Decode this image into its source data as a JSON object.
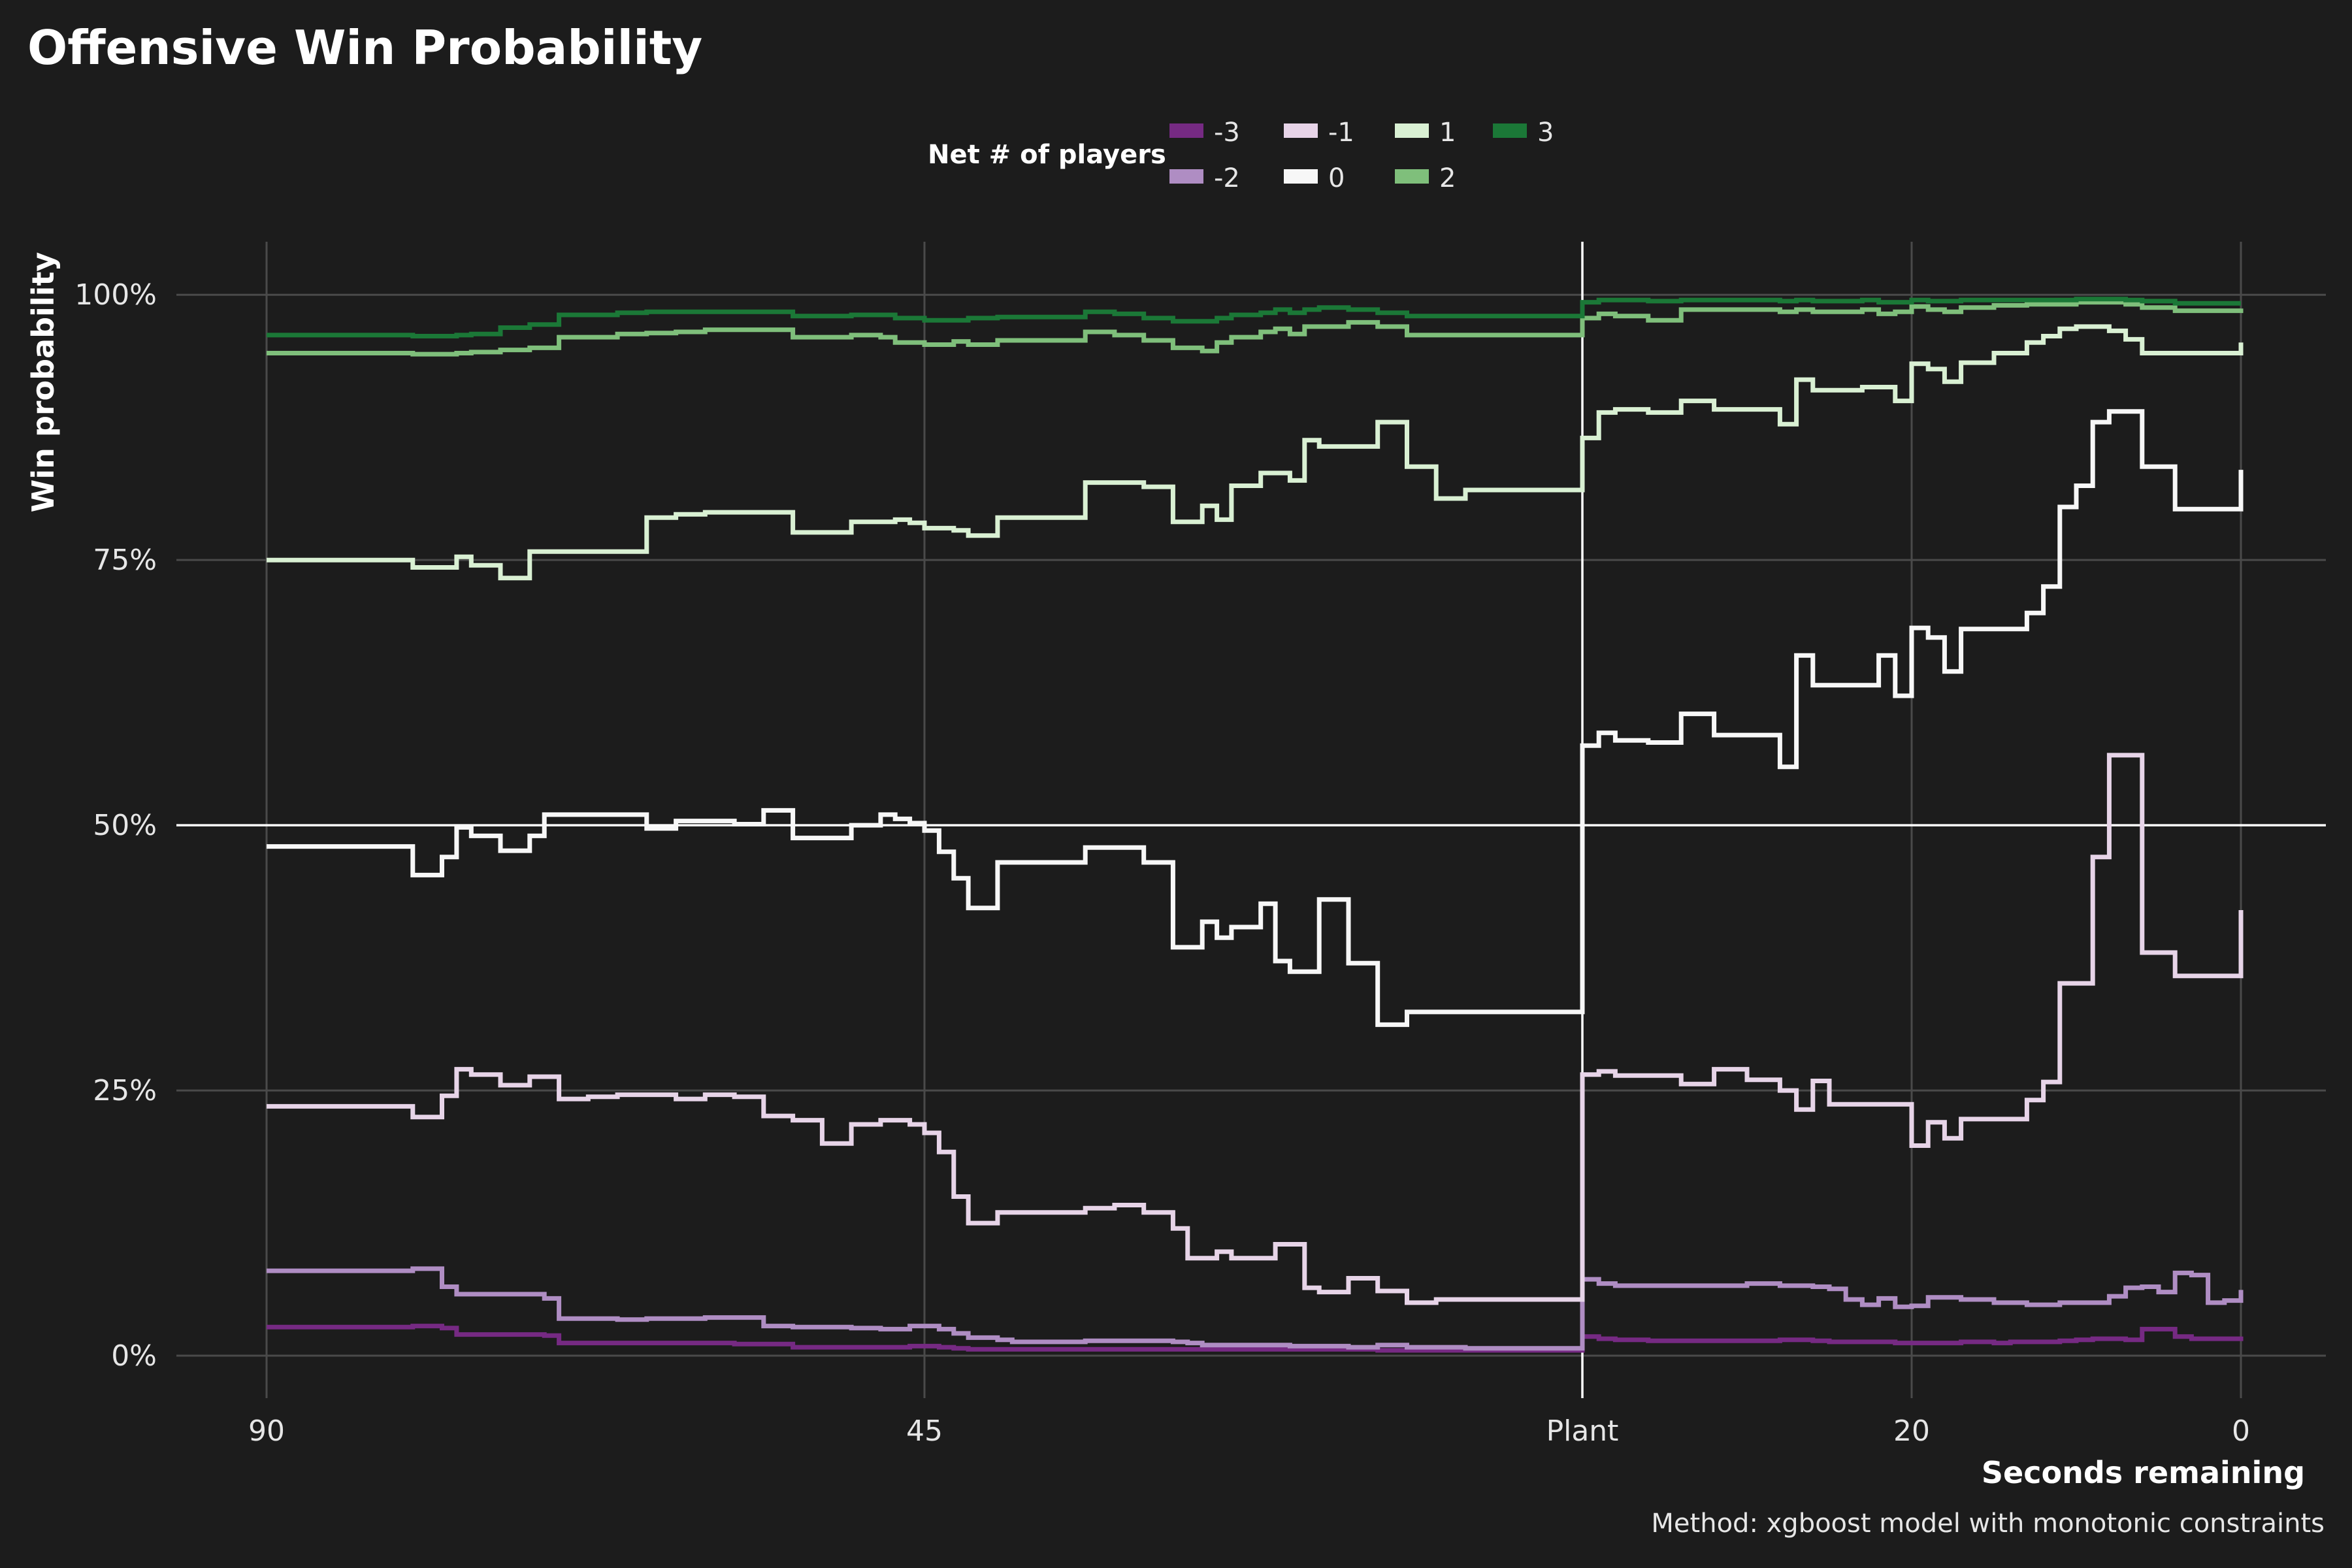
{
  "chart_data": {
    "type": "line",
    "step": true,
    "title": "Offensive Win Probability",
    "xlabel": "Seconds remaining",
    "ylabel": "Win probability",
    "caption": "Method: xgboost model with monotonic constraints",
    "legend": {
      "title": "Net # of players",
      "placement": "top-center"
    },
    "x_axis": {
      "description": "Time axis: 90s to 45s before plant, then plant, then 40s post-plant countdown to 0",
      "tick_labels": [
        "90",
        "45",
        "Plant",
        "20",
        "0"
      ]
    },
    "y_axis": {
      "ylim": [
        -4,
        105
      ],
      "ticks": [
        0,
        25,
        50,
        75,
        100
      ],
      "tick_labels": [
        "0%",
        "25%",
        "50%",
        "75%",
        "100%"
      ]
    },
    "reference_lines": {
      "horizontal": 50,
      "vertical": "Plant"
    },
    "pre_plant_x": [
      90,
      88,
      86,
      84,
      82,
      80,
      78,
      77,
      76,
      75,
      74,
      73,
      72,
      71,
      70,
      68,
      66,
      64,
      62,
      60,
      58,
      56,
      54,
      52,
      50,
      48,
      47,
      46,
      45,
      44,
      43,
      42,
      41,
      40,
      39,
      38,
      36,
      34,
      32,
      30,
      28,
      27,
      26,
      25,
      24,
      23,
      22,
      21,
      20,
      19,
      18,
      16,
      14,
      12,
      10,
      8,
      6,
      4,
      2,
      0
    ],
    "post_plant_x": [
      40,
      39,
      38,
      36,
      34,
      32,
      30,
      28,
      27,
      26,
      25,
      24,
      23,
      22,
      21,
      20,
      19,
      18,
      17,
      16,
      15,
      14,
      13,
      12,
      11,
      10,
      9,
      8,
      7,
      6,
      5,
      4,
      3,
      2,
      1,
      0
    ],
    "series": [
      {
        "name": "-3",
        "color": "#762a83",
        "pre": [
          2.7,
          2.7,
          2.7,
          2.7,
          2.7,
          2.8,
          2.6,
          2.0,
          2.0,
          2.0,
          2.0,
          2.0,
          2.0,
          1.9,
          1.2,
          1.2,
          1.2,
          1.2,
          1.2,
          1.2,
          1.1,
          1.1,
          0.8,
          0.8,
          0.8,
          0.8,
          0.8,
          0.9,
          0.9,
          0.8,
          0.7,
          0.6,
          0.6,
          0.6,
          0.6,
          0.6,
          0.6,
          0.6,
          0.6,
          0.6,
          0.6,
          0.6,
          0.6,
          0.6,
          0.6,
          0.6,
          0.6,
          0.6,
          0.6,
          0.6,
          0.6,
          0.6,
          0.5,
          0.5,
          0.5,
          0.5,
          0.5,
          0.5,
          0.5,
          0.5
        ],
        "post": [
          1.8,
          1.6,
          1.5,
          1.4,
          1.4,
          1.4,
          1.4,
          1.5,
          1.5,
          1.4,
          1.3,
          1.3,
          1.3,
          1.3,
          1.2,
          1.2,
          1.2,
          1.2,
          1.3,
          1.3,
          1.2,
          1.3,
          1.3,
          1.3,
          1.4,
          1.5,
          1.6,
          1.6,
          1.5,
          2.5,
          2.5,
          1.8,
          1.6,
          1.6,
          1.6,
          1.8
        ]
      },
      {
        "name": "-2",
        "color": "#af8dc3",
        "pre": [
          8.0,
          8.0,
          8.0,
          8.0,
          8.0,
          8.2,
          6.5,
          5.8,
          5.8,
          5.8,
          5.8,
          5.8,
          5.8,
          5.4,
          3.5,
          3.5,
          3.4,
          3.5,
          3.5,
          3.6,
          3.6,
          2.8,
          2.7,
          2.7,
          2.6,
          2.5,
          2.5,
          2.8,
          2.8,
          2.5,
          2.1,
          1.7,
          1.7,
          1.5,
          1.3,
          1.3,
          1.3,
          1.4,
          1.4,
          1.4,
          1.3,
          1.2,
          1.0,
          1.0,
          1.0,
          1.0,
          1.0,
          1.0,
          0.9,
          0.9,
          0.9,
          0.8,
          1.0,
          0.8,
          0.8,
          0.7,
          0.7,
          0.7,
          0.7,
          0.7
        ],
        "post": [
          7.2,
          6.8,
          6.6,
          6.6,
          6.6,
          6.6,
          6.8,
          6.6,
          6.6,
          6.5,
          6.3,
          5.3,
          4.8,
          5.4,
          4.6,
          4.7,
          5.5,
          5.5,
          5.3,
          5.3,
          5.0,
          5.0,
          4.8,
          4.8,
          5.0,
          5.0,
          5.0,
          5.6,
          6.4,
          6.5,
          6.0,
          7.8,
          7.6,
          5.0,
          5.2,
          6.2
        ]
      },
      {
        "name": "-1",
        "color": "#e7d4e8",
        "pre": [
          23.5,
          23.5,
          23.5,
          23.5,
          23.5,
          22.5,
          24.5,
          27.0,
          26.5,
          26.5,
          25.5,
          25.5,
          26.3,
          26.3,
          24.2,
          24.4,
          24.6,
          24.6,
          24.2,
          24.6,
          24.4,
          22.6,
          22.2,
          20.0,
          21.8,
          22.2,
          22.2,
          21.8,
          21.0,
          19.2,
          15.0,
          12.5,
          12.5,
          13.5,
          13.5,
          13.5,
          13.5,
          13.9,
          14.2,
          13.5,
          12.0,
          9.2,
          9.2,
          9.8,
          9.2,
          9.2,
          9.2,
          10.5,
          10.5,
          6.4,
          6.0,
          7.3,
          6.1,
          5.0,
          5.3,
          5.3,
          5.3,
          5.3,
          5.3,
          5.3
        ],
        "post": [
          26.5,
          26.8,
          26.4,
          26.4,
          25.6,
          27.0,
          26.0,
          25.0,
          23.2,
          25.9,
          23.7,
          23.7,
          23.7,
          23.7,
          23.7,
          19.8,
          22.0,
          20.5,
          22.3,
          22.3,
          22.3,
          22.3,
          24.1,
          25.8,
          35.1,
          35.1,
          47.0,
          56.6,
          56.6,
          38.0,
          38.0,
          35.8,
          35.8,
          35.8,
          35.8,
          42.0
        ]
      },
      {
        "name": "0",
        "color": "#f7f7f7",
        "pre": [
          48.0,
          48.0,
          48.0,
          48.0,
          48.0,
          45.3,
          47.0,
          49.8,
          49.0,
          49.0,
          47.6,
          47.6,
          49.0,
          51.0,
          51.0,
          51.0,
          51.0,
          49.7,
          50.4,
          50.4,
          50.1,
          51.4,
          48.8,
          48.8,
          50.0,
          51.0,
          50.6,
          50.2,
          49.5,
          47.5,
          45.0,
          42.2,
          42.2,
          46.5,
          46.5,
          46.5,
          46.5,
          47.9,
          47.9,
          46.5,
          38.5,
          38.5,
          40.9,
          39.4,
          40.4,
          40.4,
          42.6,
          37.2,
          36.2,
          36.2,
          43.0,
          37.0,
          31.2,
          32.4,
          32.4,
          32.4,
          32.4,
          32.4,
          32.4,
          32.4
        ],
        "post": [
          57.5,
          58.7,
          58.0,
          57.8,
          60.5,
          58.5,
          58.5,
          55.5,
          66.0,
          63.2,
          63.2,
          63.2,
          63.2,
          66.0,
          62.2,
          68.6,
          67.7,
          64.5,
          68.5,
          68.5,
          68.5,
          68.5,
          70.0,
          72.5,
          80.0,
          82.0,
          88.0,
          89.0,
          89.0,
          83.8,
          83.8,
          79.8,
          79.8,
          79.8,
          79.8,
          83.5
        ]
      },
      {
        "name": "1",
        "color": "#d9f0d3",
        "pre": [
          75.0,
          75.0,
          75.0,
          75.0,
          75.0,
          74.3,
          74.3,
          75.3,
          74.5,
          74.5,
          73.3,
          73.3,
          75.8,
          75.8,
          75.8,
          75.8,
          75.8,
          79.0,
          79.3,
          79.5,
          79.5,
          79.5,
          77.6,
          77.6,
          78.6,
          78.6,
          78.8,
          78.5,
          78.0,
          78.0,
          77.8,
          77.3,
          77.3,
          79.0,
          79.0,
          79.0,
          79.0,
          82.3,
          82.3,
          81.9,
          78.6,
          78.6,
          80.1,
          78.8,
          82.0,
          82.0,
          83.2,
          83.2,
          82.5,
          86.3,
          85.7,
          85.7,
          88.0,
          83.8,
          80.8,
          81.6,
          81.6,
          81.6,
          81.6,
          81.6
        ],
        "post": [
          86.5,
          88.9,
          89.2,
          88.9,
          90.0,
          89.2,
          89.2,
          87.8,
          92.0,
          91.0,
          91.0,
          91.0,
          91.3,
          91.3,
          90.0,
          93.5,
          93.0,
          91.8,
          93.6,
          93.6,
          94.5,
          94.5,
          95.5,
          96.1,
          96.8,
          97.0,
          97.0,
          96.6,
          95.8,
          94.5,
          94.5,
          94.5,
          94.5,
          94.5,
          94.5,
          95.5
        ]
      },
      {
        "name": "2",
        "color": "#7fbf7b",
        "pre": [
          94.5,
          94.5,
          94.5,
          94.5,
          94.5,
          94.4,
          94.4,
          94.5,
          94.6,
          94.6,
          94.8,
          94.8,
          95.0,
          95.0,
          96.0,
          96.0,
          96.3,
          96.4,
          96.5,
          96.7,
          96.7,
          96.7,
          96.0,
          96.0,
          96.2,
          96.0,
          95.5,
          95.5,
          95.3,
          95.3,
          95.6,
          95.3,
          95.3,
          95.7,
          95.7,
          95.7,
          95.7,
          96.5,
          96.2,
          95.7,
          95.0,
          95.0,
          94.7,
          95.5,
          96.0,
          96.0,
          96.5,
          96.8,
          96.3,
          97.0,
          97.0,
          97.4,
          97.0,
          96.2,
          96.2,
          96.2,
          96.2,
          96.2,
          96.2,
          96.2
        ],
        "post": [
          97.8,
          98.2,
          98.0,
          97.6,
          98.6,
          98.6,
          98.6,
          98.4,
          98.6,
          98.4,
          98.4,
          98.4,
          98.6,
          98.2,
          98.4,
          98.9,
          98.6,
          98.4,
          98.8,
          98.8,
          99.0,
          99.0,
          99.1,
          99.1,
          99.1,
          99.3,
          99.3,
          99.3,
          99.1,
          98.8,
          98.8,
          98.5,
          98.5,
          98.5,
          98.5,
          98.7
        ]
      },
      {
        "name": "3",
        "color": "#1b7837",
        "pre": [
          96.2,
          96.2,
          96.2,
          96.2,
          96.2,
          96.1,
          96.1,
          96.2,
          96.3,
          96.3,
          96.9,
          96.9,
          97.2,
          97.2,
          98.1,
          98.1,
          98.3,
          98.4,
          98.4,
          98.4,
          98.4,
          98.4,
          98.0,
          98.0,
          98.1,
          98.1,
          97.8,
          97.8,
          97.6,
          97.6,
          97.6,
          97.8,
          97.8,
          97.9,
          97.9,
          97.9,
          97.9,
          98.4,
          98.2,
          97.8,
          97.5,
          97.5,
          97.5,
          97.8,
          98.1,
          98.1,
          98.3,
          98.6,
          98.3,
          98.6,
          98.8,
          98.6,
          98.3,
          98.0,
          98.0,
          98.0,
          98.0,
          98.0,
          98.0,
          98.0
        ],
        "post": [
          99.3,
          99.5,
          99.5,
          99.4,
          99.5,
          99.5,
          99.5,
          99.4,
          99.5,
          99.4,
          99.4,
          99.4,
          99.5,
          99.3,
          99.3,
          99.5,
          99.4,
          99.4,
          99.5,
          99.5,
          99.5,
          99.5,
          99.5,
          99.5,
          99.5,
          99.6,
          99.6,
          99.6,
          99.5,
          99.4,
          99.4,
          99.2,
          99.2,
          99.2,
          99.2,
          99.2
        ]
      }
    ]
  }
}
